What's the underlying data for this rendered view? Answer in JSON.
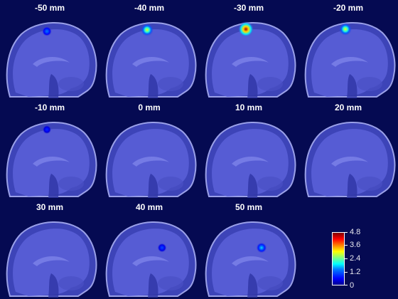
{
  "panels": [
    {
      "title": "-50 mm",
      "hot": {
        "intensity": 1.4
      }
    },
    {
      "title": "-40 mm",
      "hot": {
        "intensity": 3.0
      }
    },
    {
      "title": "-30 mm",
      "hot": {
        "intensity": 4.6
      }
    },
    {
      "title": "-20 mm",
      "hot": {
        "intensity": 3.0
      }
    },
    {
      "title": "-10 mm",
      "hot": {
        "intensity": 0.9
      }
    },
    {
      "title": "0 mm",
      "hot": null
    },
    {
      "title": "10 mm",
      "hot": null
    },
    {
      "title": "20 mm",
      "hot": null
    },
    {
      "title": "30 mm",
      "hot": null
    },
    {
      "title": "40 mm",
      "hot": {
        "intensity": 1.1
      }
    },
    {
      "title": "50 mm",
      "hot": {
        "intensity": 1.8
      }
    }
  ],
  "colorbar": {
    "min": 0,
    "max": 4.8,
    "ticks": [
      "4.8",
      "3.6",
      "2.4",
      "1.2",
      "0"
    ],
    "colors": {
      "low": "#0000ff",
      "mid": "#00ffff",
      "high": "#ff0000"
    }
  },
  "colors": {
    "background": "#050a52",
    "brain_tint": "#5a60d8"
  }
}
